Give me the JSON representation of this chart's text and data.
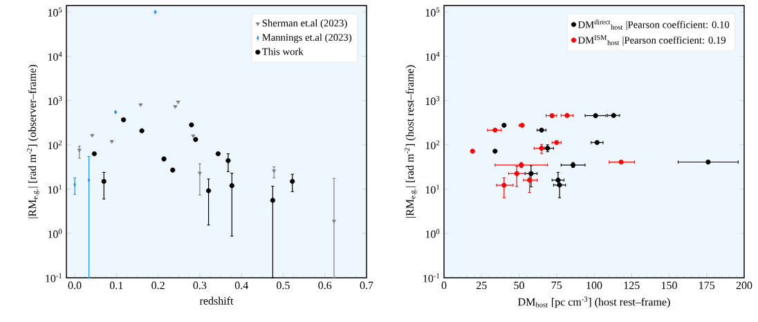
{
  "chart_data": [
    {
      "type": "scatter",
      "xlabel": "redshift",
      "ylabel": "|RM$_{e.g.}$|  [rad m$^{-2}$]  (observer–frame)",
      "log": "y",
      "legend": "top right",
      "xlim": [
        -0.02,
        0.7
      ],
      "ylim": [
        0.1,
        140000
      ],
      "xticks": [
        {
          "value": 0,
          "label": "0.0"
        },
        {
          "value": 0.1,
          "label": "0.1"
        },
        {
          "value": 0.2,
          "label": "0.2"
        },
        {
          "value": 0.3,
          "label": "0.3"
        },
        {
          "value": 0.4,
          "label": "0.4"
        },
        {
          "value": 0.5,
          "label": "0.5"
        },
        {
          "value": 0.6,
          "label": "0.6"
        },
        {
          "value": 0.7,
          "label": "0.7"
        }
      ],
      "yticks": [
        {
          "value": 0.1,
          "label": "10$^{-1}$"
        },
        {
          "value": 1,
          "label": "10$^{0}$"
        },
        {
          "value": 10,
          "label": "10$^{1}$"
        },
        {
          "value": 100,
          "label": "10$^{2}$"
        },
        {
          "value": 1000,
          "label": "10$^{3}$"
        },
        {
          "value": 10000,
          "label": "10$^{4}$"
        },
        {
          "value": 100000,
          "label": "10$^{5}$"
        }
      ],
      "series": [
        {
          "name": "Sherman et.al  (2023)",
          "color": "#808080",
          "marker": "triangle",
          "x": [
            0.011,
            0.042,
            0.089,
            0.158,
            0.241,
            0.248,
            0.284,
            0.3,
            0.478,
            0.622
          ],
          "values": [
            76,
            165,
            120,
            810,
            735,
            935,
            161,
            23,
            26,
            1.9
          ],
          "errors": [
            [
              50,
              94
            ],
            null,
            null,
            null,
            null,
            null,
            null,
            [
              7.4,
              37.6
            ],
            [
              18,
              32
            ],
            [
              0.1,
              17.5
            ]
          ]
        },
        {
          "name": "Mannings et.al  (2023)",
          "color": "#1e90ff",
          "marker": "diamond",
          "x": [
            0.0,
            0.034,
            0.098,
            0.193
          ],
          "values": [
            12.7,
            16,
            550,
            100000
          ],
          "errors": [
            [
              7.6,
              18
            ],
            [
              0.1,
              55
            ],
            null,
            null
          ]
        },
        {
          "name": "This work",
          "color": "#000000",
          "marker": "circle",
          "x": [
            0.047,
            0.07,
            0.117,
            0.161,
            0.214,
            0.235,
            0.28,
            0.29,
            0.321,
            0.344,
            0.368,
            0.377,
            0.475,
            0.522
          ],
          "values": [
            63,
            15,
            368,
            208,
            48,
            27,
            283,
            132,
            9.2,
            63,
            44,
            12,
            5.6,
            15
          ],
          "errors": [
            null,
            [
              6,
              24
            ],
            null,
            null,
            [
              44,
              53
            ],
            null,
            null,
            null,
            [
              1.55,
              17
            ],
            null,
            [
              25,
              63
            ],
            [
              0.87,
              23
            ],
            [
              0.1,
              11.7
            ],
            [
              8.8,
              21.7
            ]
          ]
        }
      ]
    },
    {
      "type": "scatter",
      "xlabel": "DM$_{host}$  [pc cm$^{-3}$]  (host rest–frame)",
      "ylabel": "|RM$_{e.g.}$|  [rad m$^{-2}$]  (host rest–frame)",
      "log": "y",
      "legend": "top right",
      "xlim": [
        0,
        200
      ],
      "ylim": [
        0.1,
        140000
      ],
      "xticks": [
        0,
        25,
        50,
        75,
        100,
        125,
        150,
        175,
        200
      ],
      "yticks": [
        {
          "value": 0.1,
          "label": "10$^{-1}$"
        },
        {
          "value": 1,
          "label": "10$^{0}$"
        },
        {
          "value": 10,
          "label": "10$^{1}$"
        },
        {
          "value": 100,
          "label": "10$^{2}$"
        },
        {
          "value": 1000,
          "label": "10$^{3}$"
        },
        {
          "value": 10000,
          "label": "10$^{4}$"
        },
        {
          "value": 100000,
          "label": "10$^{5}$"
        }
      ],
      "series": [
        {
          "name": "DM$^{direct}$$_{host}$  |Pearson coefficient: 0.10",
          "color": "#000000",
          "marker": "circle",
          "x": [
            40,
            34,
            65,
            69,
            101,
            113,
            102,
            86,
            58,
            76,
            77,
            176
          ],
          "values": [
            277,
            72,
            215,
            84,
            456,
            461,
            113,
            35,
            22.5,
            16,
            12.4,
            41
          ],
          "xerrors": [
            null,
            null,
            [
              62,
              68
            ],
            [
              67,
              73
            ],
            [
              94,
              108
            ],
            [
              109,
              117
            ],
            [
              98,
              106
            ],
            [
              78,
              94
            ],
            [
              54,
              62
            ],
            [
              72,
              80
            ],
            [
              73,
              81
            ],
            [
              156,
              196
            ]
          ],
          "errors": [
            null,
            null,
            null,
            [
              70,
              100
            ],
            null,
            null,
            null,
            [
              31,
              40
            ],
            [
              11.3,
              34
            ],
            [
              12,
              24
            ],
            [
              6.4,
              16
            ],
            null
          ]
        },
        {
          "name": "DM$^{ISM}$$_{host}$  |Pearson coefficient: 0.19",
          "color": "#ff0000",
          "marker": "circle",
          "x": [
            19,
            34,
            52,
            72,
            82,
            75,
            65,
            118,
            51.5,
            48.5,
            57,
            40
          ],
          "values": [
            72,
            215,
            277,
            456,
            461,
            113,
            84,
            41,
            35,
            22.5,
            16,
            12.3
          ],
          "xerrors": [
            null,
            [
              29,
              38
            ],
            [
              50,
              53
            ],
            [
              68,
              75
            ],
            [
              78,
              86
            ],
            [
              72,
              78
            ],
            [
              60,
              67
            ],
            [
              110,
              127
            ],
            [
              34,
              69
            ],
            [
              43,
              54
            ],
            [
              53,
              62
            ],
            [
              35,
              46
            ]
          ],
          "errors": [
            null,
            null,
            null,
            null,
            null,
            null,
            [
              64,
              102
            ],
            null,
            [
              31,
              40
            ],
            [
              11.5,
              33
            ],
            [
              8.4,
              23
            ],
            [
              6.4,
              18
            ]
          ]
        }
      ]
    }
  ]
}
